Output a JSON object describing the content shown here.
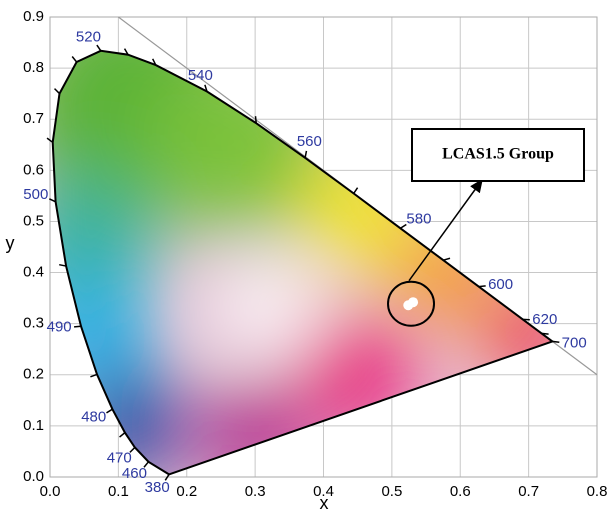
{
  "chart_data": {
    "type": "chromaticity",
    "x_label": "x",
    "y_label": "y",
    "xlim": [
      0,
      0.8
    ],
    "ylim": [
      0,
      0.9
    ],
    "xticks": [
      {
        "value": 0,
        "label": "0.0"
      },
      0.1,
      0.2,
      0.3,
      0.4,
      0.5,
      0.6,
      0.7,
      0.8
    ],
    "yticks": [
      {
        "value": 0,
        "label": "0.0"
      },
      0.1,
      0.2,
      0.3,
      0.4,
      0.5,
      0.6,
      0.7,
      0.8,
      0.9
    ],
    "grid": true,
    "locus": {
      "x": [
        0.1741,
        0.144,
        0.1241,
        0.1096,
        0.0913,
        0.0687,
        0.0454,
        0.0235,
        0.0082,
        0.0039,
        0.0139,
        0.0389,
        0.0743,
        0.1142,
        0.1547,
        0.2296,
        0.3016,
        0.3731,
        0.4441,
        0.5125,
        0.5752,
        0.627,
        0.6915,
        0.719,
        0.7347
      ],
      "y": [
        0.005,
        0.0297,
        0.0578,
        0.0868,
        0.1327,
        0.2007,
        0.295,
        0.4127,
        0.5384,
        0.6548,
        0.7502,
        0.812,
        0.8338,
        0.8262,
        0.8059,
        0.7543,
        0.6923,
        0.6245,
        0.5547,
        0.4866,
        0.4242,
        0.3725,
        0.3083,
        0.2809,
        0.2653
      ],
      "wavelengths": [
        380,
        460,
        470,
        null,
        480,
        null,
        490,
        null,
        500,
        null,
        null,
        null,
        520,
        null,
        null,
        540,
        null,
        560,
        null,
        580,
        null,
        600,
        620,
        null,
        700
      ]
    },
    "points": {
      "x": [
        0.524,
        0.531
      ],
      "y": [
        0.336,
        0.342
      ],
      "color": "#ffffff"
    },
    "annotation": {
      "text": "LCAS1.5 Group",
      "x": 0.528,
      "y": 0.339
    }
  }
}
